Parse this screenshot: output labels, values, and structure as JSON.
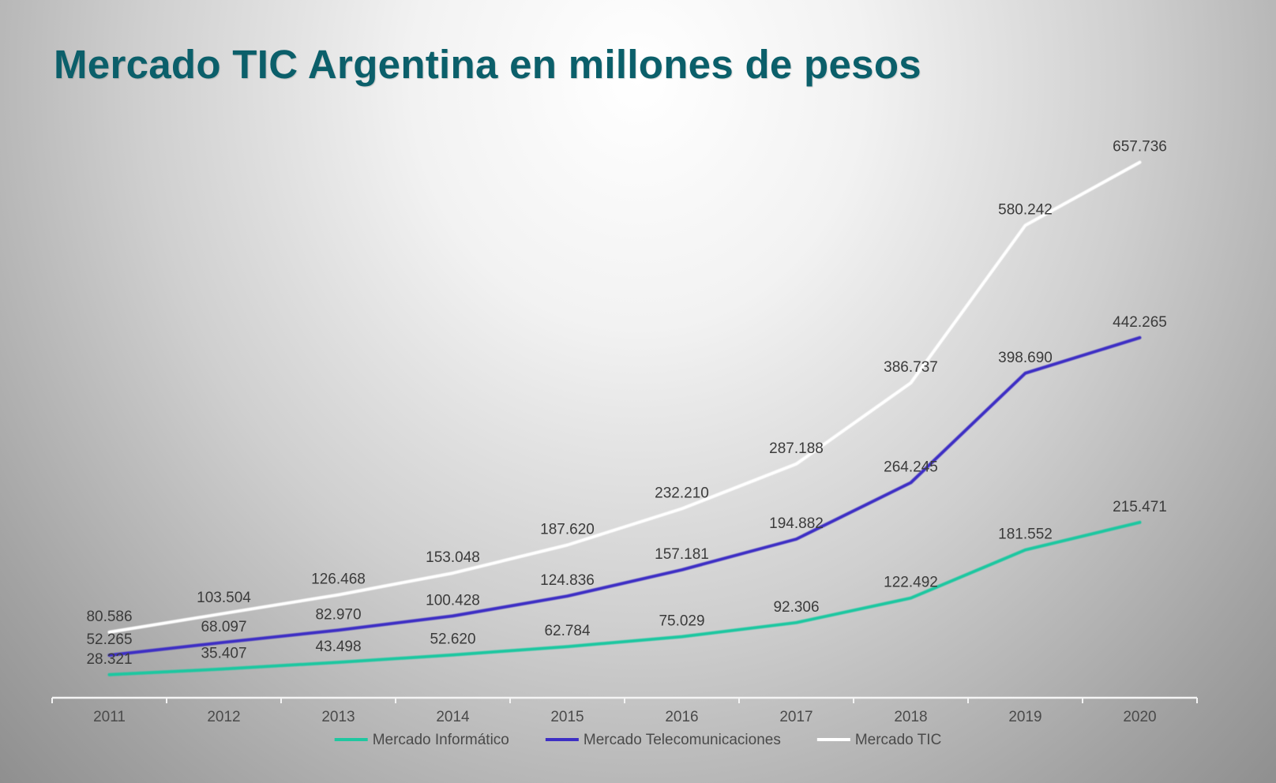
{
  "title": "Mercado TIC Argentina en millones de pesos",
  "chart_data": {
    "type": "line",
    "title": "Mercado TIC Argentina en millones de pesos",
    "xlabel": "",
    "ylabel": "",
    "categories": [
      "2011",
      "2012",
      "2013",
      "2014",
      "2015",
      "2016",
      "2017",
      "2018",
      "2019",
      "2020"
    ],
    "series": [
      {
        "name": "Mercado Informático",
        "color": "#1fc7a0",
        "values": [
          28321,
          35407,
          43498,
          52620,
          62784,
          75029,
          92306,
          122492,
          181552,
          215471
        ],
        "labels": [
          "28.321",
          "35.407",
          "43.498",
          "52.620",
          "62.784",
          "75.029",
          "92.306",
          "122.492",
          "181.552",
          "215.471"
        ]
      },
      {
        "name": "Mercado Telecomunicaciones",
        "color": "#3d2fc4",
        "values": [
          52265,
          68097,
          82970,
          100428,
          124836,
          157181,
          194882,
          264245,
          398690,
          442265
        ],
        "labels": [
          "52.265",
          "68.097",
          "82.970",
          "100.428",
          "124.836",
          "157.181",
          "194.882",
          "264.245",
          "398.690",
          "442.265"
        ]
      },
      {
        "name": "Mercado TIC",
        "color": "#ffffff",
        "values": [
          80586,
          103504,
          126468,
          153048,
          187620,
          232210,
          287188,
          386737,
          580242,
          657736
        ],
        "labels": [
          "80.586",
          "103.504",
          "126.468",
          "153.048",
          "187.620",
          "232.210",
          "287.188",
          "386.737",
          "580.242",
          "657.736"
        ]
      }
    ],
    "ylim": [
      0,
      700000
    ],
    "grid": false,
    "legend": "bottom"
  }
}
